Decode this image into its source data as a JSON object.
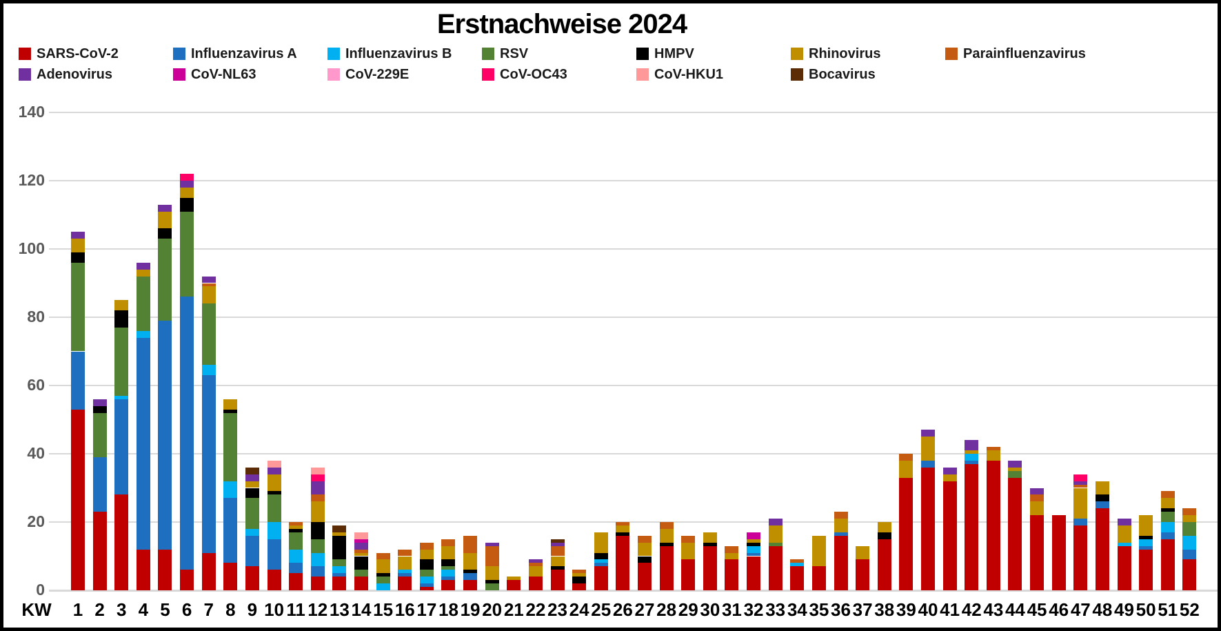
{
  "title": "Erstnachweise 2024",
  "axes": {
    "x_prefix": "KW",
    "y_ticks": [
      0,
      20,
      40,
      60,
      80,
      100,
      120,
      140
    ],
    "grid_color": "#d9d9d9",
    "tick_label_color": "#595959"
  },
  "chart_data": {
    "type": "bar",
    "stacked": true,
    "title": "Erstnachweise 2024",
    "xlabel": "KW",
    "ylabel": "",
    "ylim": [
      0,
      140
    ],
    "grid": true,
    "legend_position": "top",
    "categories": [
      1,
      2,
      3,
      4,
      5,
      6,
      7,
      8,
      9,
      10,
      11,
      12,
      13,
      14,
      15,
      16,
      17,
      18,
      19,
      20,
      21,
      22,
      23,
      24,
      25,
      26,
      27,
      28,
      29,
      30,
      31,
      32,
      33,
      34,
      35,
      36,
      37,
      38,
      39,
      40,
      41,
      42,
      43,
      44,
      45,
      46,
      47,
      48,
      49,
      50,
      51,
      52
    ],
    "series": [
      {
        "name": "SARS-CoV-2",
        "key": "sars-cov-2",
        "color": "#C00000",
        "values": [
          53,
          23,
          28,
          12,
          12,
          6,
          11,
          8,
          7,
          6,
          5,
          4,
          4,
          4,
          0,
          4,
          1,
          3,
          3,
          0,
          3,
          4,
          6,
          2,
          7,
          16,
          8,
          13,
          9,
          13,
          9,
          10,
          13,
          7,
          7,
          16,
          9,
          15,
          33,
          36,
          32,
          37,
          38,
          33,
          22,
          22,
          19,
          24,
          13,
          12,
          15,
          9
        ]
      },
      {
        "name": "Influenzavirus A",
        "key": "influenzavirus-a",
        "color": "#1F6FC0",
        "values": [
          17,
          16,
          28,
          62,
          67,
          80,
          52,
          19,
          9,
          9,
          3,
          3,
          1,
          0,
          0,
          1,
          1,
          1,
          2,
          0,
          0,
          0,
          0,
          0,
          1,
          0,
          0,
          0,
          0,
          0,
          0,
          1,
          0,
          0,
          0,
          1,
          0,
          0,
          0,
          2,
          0,
          1,
          0,
          0,
          0,
          0,
          2,
          2,
          0,
          1,
          2,
          3
        ]
      },
      {
        "name": "Influenzavirus B",
        "key": "influenzavirus-b",
        "color": "#00B0F0",
        "values": [
          0,
          0,
          1,
          2,
          0,
          0,
          3,
          5,
          2,
          5,
          4,
          4,
          2,
          0,
          2,
          1,
          2,
          2,
          0,
          0,
          0,
          0,
          0,
          0,
          1,
          0,
          0,
          0,
          0,
          0,
          0,
          2,
          0,
          1,
          0,
          0,
          0,
          0,
          0,
          0,
          0,
          2,
          0,
          0,
          0,
          0,
          0,
          0,
          1,
          2,
          3,
          4
        ]
      },
      {
        "name": "RSV",
        "key": "rsv",
        "color": "#548235",
        "values": [
          26,
          13,
          20,
          16,
          24,
          25,
          18,
          20,
          9,
          8,
          5,
          4,
          2,
          2,
          2,
          0,
          2,
          1,
          0,
          2,
          0,
          0,
          0,
          0,
          0,
          0,
          0,
          0,
          0,
          0,
          0,
          0,
          1,
          0,
          0,
          0,
          0,
          0,
          0,
          0,
          0,
          0,
          0,
          2,
          0,
          0,
          0,
          0,
          0,
          0,
          3,
          4
        ]
      },
      {
        "name": "HMPV",
        "key": "hmpv",
        "color": "#000000",
        "values": [
          3,
          2,
          5,
          0,
          3,
          4,
          0,
          1,
          3,
          1,
          1,
          5,
          7,
          4,
          1,
          0,
          3,
          2,
          1,
          1,
          0,
          0,
          1,
          2,
          2,
          1,
          2,
          1,
          0,
          1,
          0,
          1,
          0,
          0,
          0,
          0,
          0,
          2,
          0,
          0,
          0,
          0,
          0,
          0,
          0,
          0,
          0,
          2,
          0,
          1,
          1,
          0
        ]
      },
      {
        "name": "Rhinovirus",
        "key": "rhinovirus",
        "color": "#BF8F00",
        "values": [
          4,
          0,
          3,
          2,
          5,
          3,
          5,
          3,
          2,
          5,
          1,
          6,
          1,
          1,
          4,
          4,
          3,
          4,
          5,
          4,
          1,
          3,
          3,
          1,
          6,
          2,
          4,
          4,
          5,
          3,
          2,
          1,
          5,
          0,
          9,
          4,
          4,
          3,
          5,
          7,
          2,
          1,
          3,
          1,
          4,
          0,
          9,
          4,
          5,
          6,
          3,
          2
        ]
      },
      {
        "name": "Parainfluenzavirus",
        "key": "parainfluenzavirus",
        "color": "#C55A11",
        "values": [
          0,
          0,
          0,
          0,
          0,
          0,
          1,
          0,
          0,
          0,
          1,
          2,
          0,
          1,
          2,
          2,
          2,
          2,
          5,
          6,
          0,
          1,
          3,
          1,
          0,
          1,
          2,
          2,
          2,
          0,
          2,
          0,
          0,
          1,
          0,
          2,
          0,
          0,
          2,
          0,
          0,
          0,
          1,
          0,
          2,
          0,
          1,
          0,
          0,
          0,
          2,
          2
        ]
      },
      {
        "name": "Adenovirus",
        "key": "adenovirus",
        "color": "#7030A0",
        "values": [
          2,
          2,
          0,
          2,
          2,
          2,
          2,
          0,
          2,
          2,
          0,
          4,
          0,
          2,
          0,
          0,
          0,
          0,
          0,
          1,
          0,
          1,
          1,
          0,
          0,
          0,
          0,
          0,
          0,
          0,
          0,
          0,
          2,
          0,
          0,
          0,
          0,
          0,
          0,
          2,
          2,
          3,
          0,
          2,
          2,
          0,
          1,
          0,
          2,
          0,
          0,
          0
        ]
      },
      {
        "name": "CoV-NL63",
        "key": "cov-nl63",
        "color": "#CC0099",
        "values": [
          0,
          0,
          0,
          0,
          0,
          0,
          0,
          0,
          0,
          0,
          0,
          0,
          0,
          1,
          0,
          0,
          0,
          0,
          0,
          0,
          0,
          0,
          0,
          0,
          0,
          0,
          0,
          0,
          0,
          0,
          0,
          2,
          0,
          0,
          0,
          0,
          0,
          0,
          0,
          0,
          0,
          0,
          0,
          0,
          0,
          0,
          0,
          0,
          0,
          0,
          0,
          0
        ]
      },
      {
        "name": "CoV-229E",
        "key": "cov-229e",
        "color": "#FF99CC",
        "values": [
          0,
          0,
          0,
          0,
          0,
          0,
          0,
          0,
          0,
          0,
          0,
          0,
          0,
          0,
          0,
          0,
          0,
          0,
          0,
          0,
          0,
          0,
          0,
          0,
          0,
          0,
          0,
          0,
          0,
          0,
          0,
          0,
          0,
          0,
          0,
          0,
          0,
          0,
          0,
          0,
          0,
          0,
          0,
          0,
          0,
          0,
          0,
          0,
          0,
          0,
          0,
          0
        ]
      },
      {
        "name": "CoV-OC43",
        "key": "cov-oc43",
        "color": "#FF0066",
        "values": [
          0,
          0,
          0,
          0,
          0,
          2,
          0,
          0,
          0,
          0,
          0,
          2,
          0,
          0,
          0,
          0,
          0,
          0,
          0,
          0,
          0,
          0,
          0,
          0,
          0,
          0,
          0,
          0,
          0,
          0,
          0,
          0,
          0,
          0,
          0,
          0,
          0,
          0,
          0,
          0,
          0,
          0,
          0,
          0,
          0,
          0,
          2,
          0,
          0,
          0,
          0,
          0
        ]
      },
      {
        "name": "CoV-HKU1",
        "key": "cov-hku1",
        "color": "#FF9999",
        "values": [
          0,
          0,
          0,
          0,
          0,
          0,
          0,
          0,
          0,
          2,
          0,
          2,
          0,
          2,
          0,
          0,
          0,
          0,
          0,
          0,
          0,
          0,
          0,
          0,
          0,
          0,
          0,
          0,
          0,
          0,
          0,
          0,
          0,
          0,
          0,
          0,
          0,
          0,
          0,
          0,
          0,
          0,
          0,
          0,
          0,
          0,
          0,
          0,
          0,
          0,
          0,
          0
        ]
      },
      {
        "name": "Bocavirus",
        "key": "bocavirus",
        "color": "#5B2C06",
        "values": [
          0,
          0,
          0,
          0,
          0,
          0,
          0,
          0,
          2,
          0,
          0,
          0,
          2,
          0,
          0,
          0,
          0,
          0,
          0,
          0,
          0,
          0,
          1,
          0,
          0,
          0,
          0,
          0,
          0,
          0,
          0,
          0,
          0,
          0,
          0,
          0,
          0,
          0,
          0,
          0,
          0,
          0,
          0,
          0,
          0,
          0,
          0,
          0,
          0,
          0,
          0,
          0
        ]
      }
    ]
  },
  "layout_hints": {
    "legend_rows": [
      7,
      6
    ]
  }
}
